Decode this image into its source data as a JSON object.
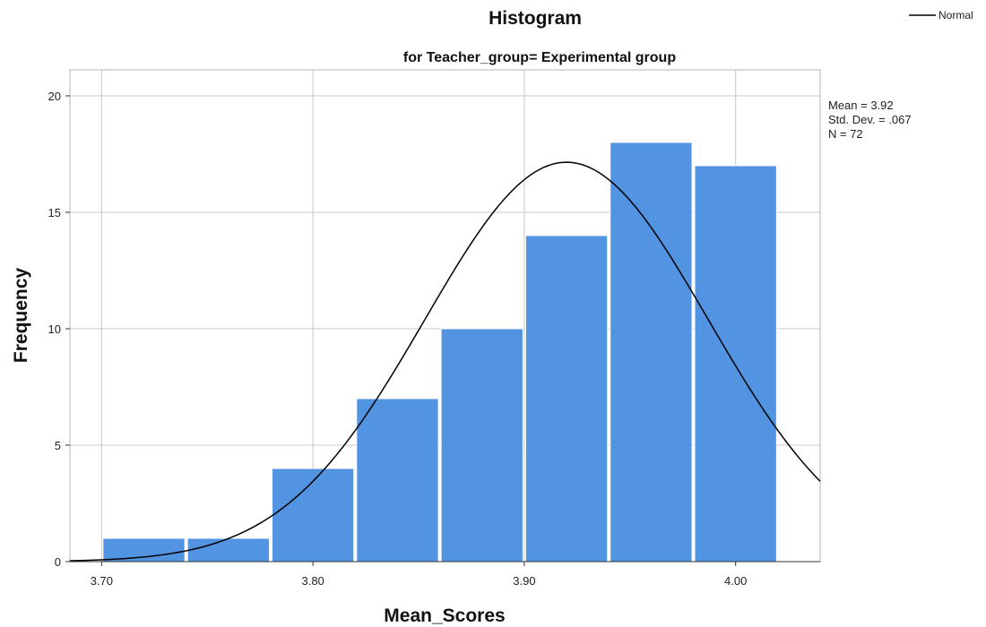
{
  "chart_data": {
    "type": "bar",
    "title": "Histogram",
    "subtitle": "for Teacher_group= Experimental group",
    "xlabel": "Mean_Scores",
    "ylabel": "Frequency",
    "bins": [
      {
        "start": 3.7,
        "end": 3.74,
        "count": 1
      },
      {
        "start": 3.74,
        "end": 3.78,
        "count": 1
      },
      {
        "start": 3.78,
        "end": 3.82,
        "count": 4
      },
      {
        "start": 3.82,
        "end": 3.86,
        "count": 7
      },
      {
        "start": 3.86,
        "end": 3.9,
        "count": 10
      },
      {
        "start": 3.9,
        "end": 3.94,
        "count": 14
      },
      {
        "start": 3.94,
        "end": 3.98,
        "count": 18
      },
      {
        "start": 3.98,
        "end": 4.02,
        "count": 17
      }
    ],
    "x_ticks": [
      "3.70",
      "3.80",
      "3.90",
      "4.00"
    ],
    "y_ticks": [
      0,
      5,
      10,
      15,
      20
    ],
    "xlim": [
      3.685,
      4.04
    ],
    "ylim": [
      0,
      20
    ],
    "grid": true,
    "bar_color": "#5293E2",
    "curve_color": "#000000",
    "normal_curve": {
      "mean": 3.92,
      "sd": 0.067,
      "n": 72,
      "bin_width": 0.04
    },
    "stats": {
      "mean": "Mean = 3.92",
      "std": "Std. Dev. = .067",
      "n": "N = 72"
    },
    "legend": {
      "position": "top-right",
      "label": "Normal"
    }
  }
}
